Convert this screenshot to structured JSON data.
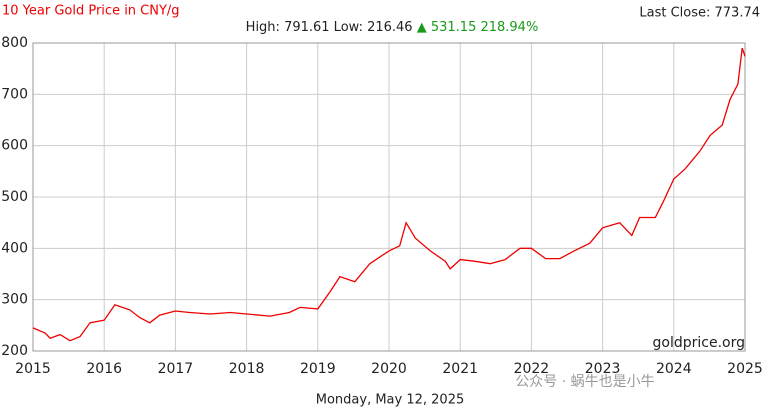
{
  "chart_data": {
    "type": "line",
    "title": "10 Year Gold Price in CNY/g",
    "high_low": "High: 791.61 Low: 216.46",
    "change": "▲ 531.15 218.94%",
    "last_close": "Last Close: 773.74",
    "source": "goldprice.org",
    "date": "Monday, May 12, 2025",
    "watermark": "公众号 · 蜗牛也是小牛",
    "color": "#ee0000",
    "grid": true,
    "xlim": [
      2015,
      2025
    ],
    "xticks": [
      2015,
      2016,
      2017,
      2018,
      2019,
      2020,
      2021,
      2022,
      2023,
      2024,
      2025
    ],
    "ylim": [
      200,
      800
    ],
    "yticks": [
      200,
      300,
      400,
      500,
      600,
      700,
      800
    ],
    "x": [
      2015.0,
      2015.17,
      2015.24,
      2015.38,
      2015.52,
      2015.66,
      2015.8,
      2016.0,
      2016.15,
      2016.36,
      2016.5,
      2016.64,
      2016.78,
      2017.0,
      2017.2,
      2017.49,
      2017.77,
      2018.0,
      2018.33,
      2018.6,
      2018.75,
      2019.0,
      2019.17,
      2019.31,
      2019.52,
      2019.73,
      2020.0,
      2020.15,
      2020.24,
      2020.37,
      2020.58,
      2020.79,
      2020.86,
      2021.0,
      2021.2,
      2021.42,
      2021.63,
      2021.84,
      2022.0,
      2022.2,
      2022.4,
      2022.6,
      2022.82,
      2023.0,
      2023.24,
      2023.41,
      2023.52,
      2023.74,
      2023.85,
      2024.0,
      2024.16,
      2024.37,
      2024.51,
      2024.68,
      2024.79,
      2024.9,
      2024.96,
      2025.0
    ],
    "values": [
      245,
      235,
      225,
      232,
      220,
      228,
      255,
      260,
      290,
      280,
      265,
      255,
      270,
      278,
      275,
      272,
      275,
      272,
      268,
      275,
      285,
      282,
      315,
      345,
      335,
      370,
      395,
      405,
      450,
      420,
      395,
      375,
      360,
      378,
      375,
      370,
      378,
      400,
      400,
      380,
      380,
      395,
      410,
      440,
      450,
      425,
      460,
      460,
      490,
      535,
      555,
      590,
      620,
      640,
      690,
      720,
      790,
      774
    ]
  }
}
